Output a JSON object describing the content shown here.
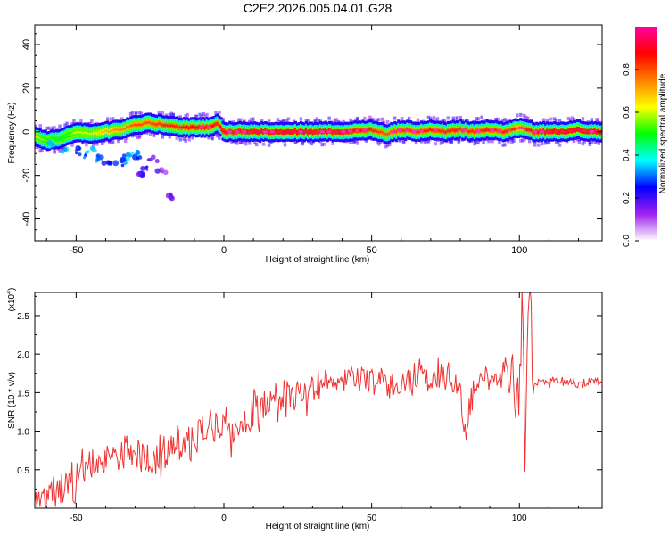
{
  "title": "C2E2.2026.005.04.01.G28",
  "chart_data": [
    {
      "type": "heatmap",
      "xlabel": "Height of straight line (km)",
      "ylabel": "Frequency (Hz)",
      "xlim": [
        -64,
        128
      ],
      "ylim": [
        -50,
        49
      ],
      "xticks": [
        -50,
        0,
        50,
        100
      ],
      "xtick_labels": [
        "-50",
        "0",
        "50",
        "100"
      ],
      "yticks": [
        -40,
        -20,
        0,
        20,
        40
      ],
      "ytick_labels": [
        "-40",
        "-20",
        "0",
        "20",
        "40"
      ],
      "grid": false,
      "colorbar": {
        "label": "Normalized spectral amplitude",
        "range": [
          0,
          1
        ],
        "ticks": [
          0.0,
          0.2,
          0.4,
          0.6,
          0.8
        ],
        "tick_labels": [
          "0.0",
          "0.2",
          "0.4",
          "0.6",
          "0.8"
        ],
        "colors": [
          "#ffffff",
          "#a020f0",
          "#0000ff",
          "#00ffff",
          "#00ff00",
          "#ffff00",
          "#ff8000",
          "#ff0000",
          "#ff00a0"
        ]
      },
      "ridge": {
        "x": [
          -64,
          -60,
          -55,
          -50,
          -45,
          -40,
          -35,
          -30,
          -25,
          -20,
          -15,
          -10,
          -5,
          -2,
          0,
          5,
          10,
          20,
          30,
          40,
          50,
          55,
          60,
          65,
          70,
          75,
          80,
          85,
          90,
          95,
          100,
          105,
          110,
          115,
          120,
          125,
          128
        ],
        "freq": [
          -2,
          -4,
          -3,
          0,
          -1,
          0,
          1,
          3,
          4,
          3,
          2,
          2,
          2,
          4,
          0,
          0,
          0,
          0,
          0,
          0,
          1,
          -1,
          1,
          0,
          1,
          0,
          1,
          0,
          1,
          0,
          2,
          0,
          0,
          0,
          1,
          0,
          0
        ],
        "intensity": [
          0.6,
          0.55,
          0.5,
          0.6,
          0.6,
          0.7,
          0.75,
          0.8,
          0.8,
          0.85,
          0.85,
          0.9,
          0.9,
          0.85,
          0.9,
          0.92,
          0.95,
          0.95,
          0.95,
          0.95,
          0.85,
          0.8,
          0.85,
          0.85,
          0.85,
          0.85,
          0.85,
          0.85,
          0.85,
          0.85,
          0.75,
          0.9,
          0.95,
          0.95,
          0.95,
          0.95,
          0.95
        ]
      },
      "scatter_tail": {
        "x": [
          -58,
          -54,
          -50,
          -48,
          -45,
          -42,
          -40,
          -38,
          -35,
          -34,
          -32,
          -30,
          -29,
          -28,
          -26,
          -24,
          -21,
          -18
        ],
        "freq": [
          -6,
          -8,
          -9,
          -11,
          -9,
          -12,
          -13,
          -15,
          -12,
          -14,
          -11,
          -10,
          -11,
          -19,
          -16,
          -13,
          -18,
          -30
        ],
        "intensity": [
          0.3,
          0.3,
          0.25,
          0.25,
          0.3,
          0.25,
          0.2,
          0.2,
          0.2,
          0.25,
          0.3,
          0.3,
          0.25,
          0.15,
          0.15,
          0.1,
          0.1,
          0.1
        ]
      }
    },
    {
      "type": "line",
      "xlabel": "Height of straight line (km)",
      "ylabel": "SNR (10 * v/v)",
      "y_multiplier": "(x10⁴)",
      "y_multiplier_base": "(x10",
      "y_multiplier_exp": "4",
      "y_multiplier_close": ")",
      "xlim": [
        -64,
        128
      ],
      "ylim": [
        0.0,
        2.8
      ],
      "xticks": [
        -50,
        0,
        50,
        100
      ],
      "xtick_labels": [
        "-50",
        "0",
        "50",
        "100"
      ],
      "yticks": [
        0.5,
        1.0,
        1.5,
        2.0,
        2.5
      ],
      "ytick_labels": [
        "0.5",
        "1.0",
        "1.5",
        "2.0",
        "2.5"
      ],
      "grid": false,
      "series": [
        {
          "color": "#ee3333",
          "x": [
            -64,
            -60,
            -55,
            -50,
            -45,
            -40,
            -35,
            -30,
            -25,
            -20,
            -15,
            -10,
            -5,
            0,
            2,
            5,
            10,
            15,
            20,
            25,
            30,
            35,
            40,
            45,
            50,
            55,
            60,
            65,
            70,
            75,
            80,
            81,
            85,
            90,
            95,
            98,
            100,
            101,
            102,
            103,
            105,
            110,
            115,
            120,
            125,
            128
          ],
          "y": [
            0.15,
            0.2,
            0.2,
            0.4,
            0.55,
            0.6,
            0.65,
            0.7,
            0.65,
            0.7,
            0.85,
            0.9,
            1.0,
            1.1,
            0.9,
            1.1,
            1.2,
            1.35,
            1.45,
            1.5,
            1.55,
            1.65,
            1.65,
            1.7,
            1.65,
            1.6,
            1.65,
            1.7,
            1.7,
            1.75,
            1.6,
            0.9,
            1.65,
            1.7,
            1.7,
            1.6,
            1.5,
            2.75,
            0.5,
            2.75,
            1.6,
            1.65,
            1.65,
            1.6,
            1.65,
            1.65
          ]
        }
      ]
    }
  ]
}
